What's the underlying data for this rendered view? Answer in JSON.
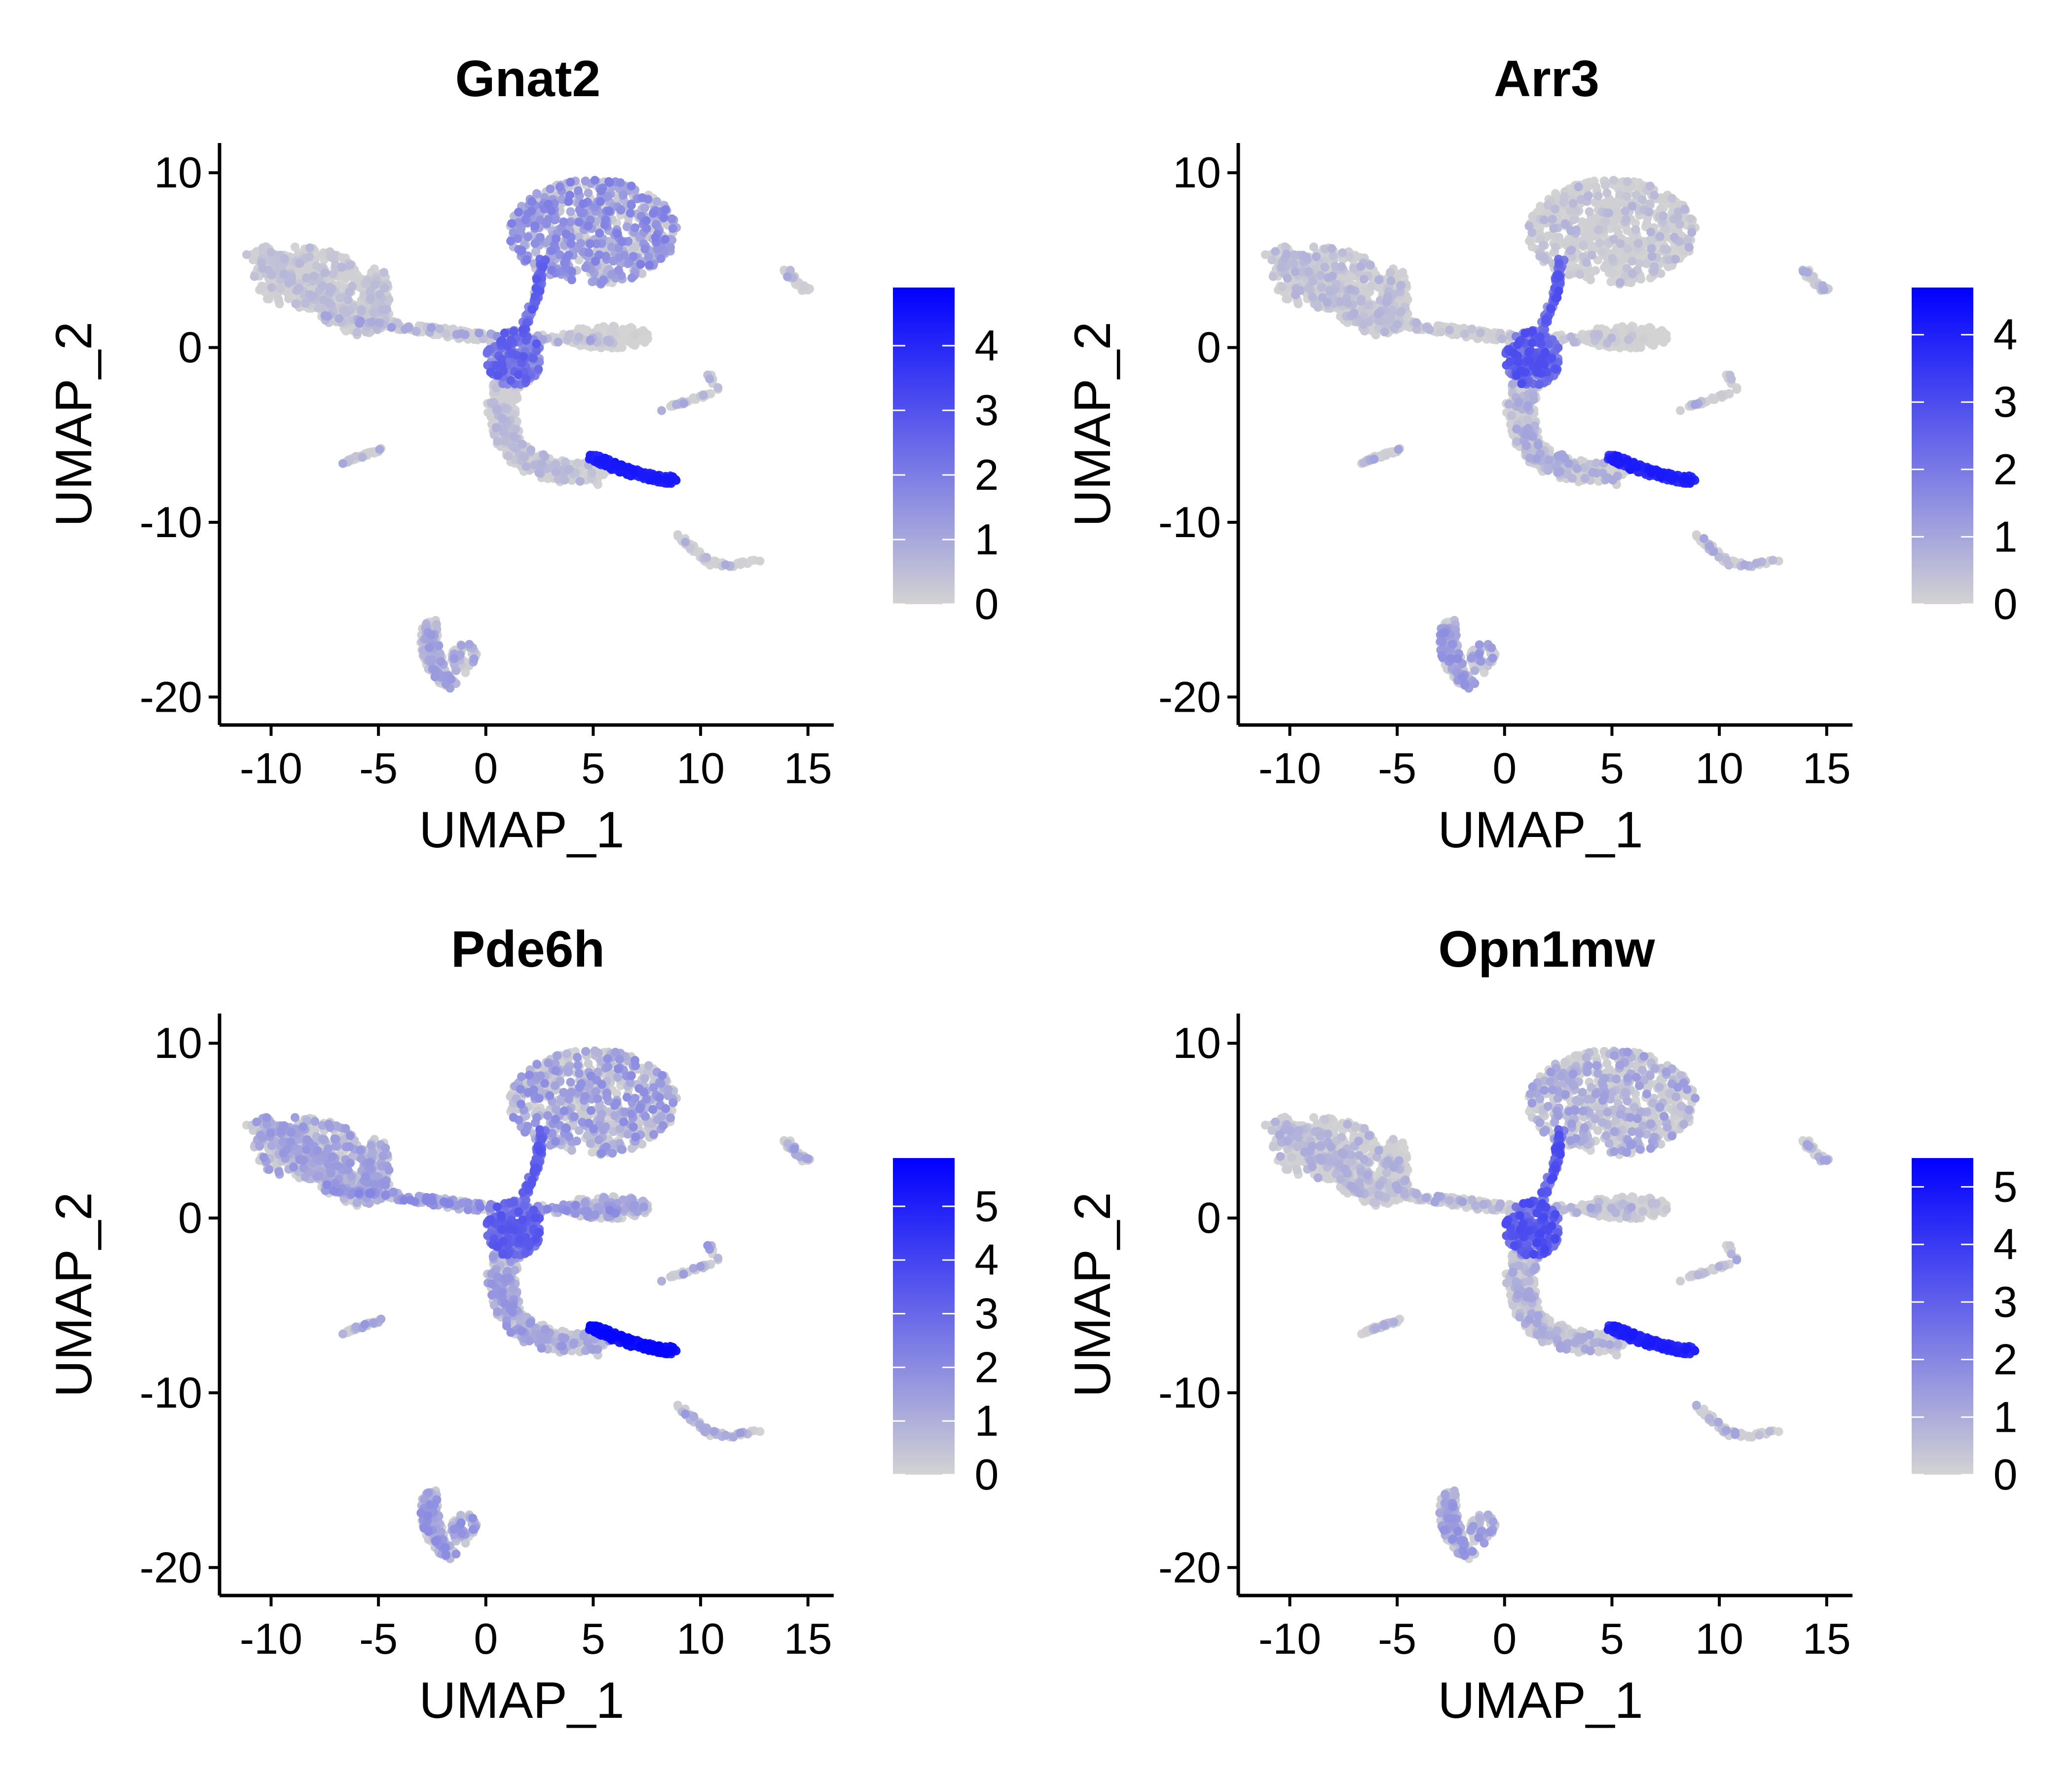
{
  "chart_data": [
    {
      "type": "scatter",
      "title": "Gnat2",
      "xlabel": "UMAP_1",
      "ylabel": "UMAP_2",
      "x_ticks": [
        -10,
        -5,
        0,
        5,
        10,
        15
      ],
      "y_ticks": [
        -20,
        -10,
        0,
        10
      ],
      "xlim": [
        -12.4,
        16.2
      ],
      "ylim": [
        -21.6,
        11.7
      ],
      "colorbar": {
        "ticks": [
          0,
          1,
          2,
          3,
          4
        ],
        "min": 0,
        "max": 4.9,
        "low_color": "#d3d3d3",
        "high_color": "#0000ff"
      },
      "expression_summary": [
        {
          "cluster": "upper-lobe",
          "level": 1.3,
          "spread": 0.35
        },
        {
          "cluster": "left-lobe",
          "level": 0.35,
          "spread": 0.15
        },
        {
          "cluster": "stem",
          "level": 0.6,
          "spread": 0.35
        },
        {
          "cluster": "junction",
          "level": 2.0,
          "spread": 0.45
        },
        {
          "cluster": "descending-arm",
          "level": 0.4,
          "spread": 0.2
        },
        {
          "cluster": "right-branch",
          "level": 0.05,
          "spread": 0.05
        },
        {
          "cluster": "hot-cluster",
          "level": 4.0,
          "spread": 0.2
        },
        {
          "cluster": "bottom-cluster",
          "level": 0.7,
          "spread": 0.35
        },
        {
          "cluster": "small-islands",
          "level": 0.5,
          "spread": 0.3
        }
      ]
    },
    {
      "type": "scatter",
      "title": "Arr3",
      "xlabel": "UMAP_1",
      "ylabel": "UMAP_2",
      "x_ticks": [
        -10,
        -5,
        0,
        5,
        10,
        15
      ],
      "y_ticks": [
        -20,
        -10,
        0,
        10
      ],
      "xlim": [
        -12.4,
        16.2
      ],
      "ylim": [
        -21.6,
        11.7
      ],
      "colorbar": {
        "ticks": [
          0,
          1,
          2,
          3,
          4
        ],
        "min": 0,
        "max": 4.7,
        "low_color": "#d3d3d3",
        "high_color": "#0000ff"
      },
      "expression_summary": [
        {
          "cluster": "upper-lobe",
          "level": 0.35,
          "spread": 0.2
        },
        {
          "cluster": "left-lobe",
          "level": 0.4,
          "spread": 0.2
        },
        {
          "cluster": "stem",
          "level": 0.3,
          "spread": 0.2
        },
        {
          "cluster": "junction",
          "level": 2.2,
          "spread": 0.45
        },
        {
          "cluster": "descending-arm",
          "level": 0.5,
          "spread": 0.3
        },
        {
          "cluster": "right-branch",
          "level": 0.05,
          "spread": 0.05
        },
        {
          "cluster": "hot-cluster",
          "level": 3.7,
          "spread": 0.25
        },
        {
          "cluster": "bottom-cluster",
          "level": 0.8,
          "spread": 0.4
        },
        {
          "cluster": "small-islands",
          "level": 0.5,
          "spread": 0.3
        }
      ]
    },
    {
      "type": "scatter",
      "title": "Pde6h",
      "xlabel": "UMAP_1",
      "ylabel": "UMAP_2",
      "x_ticks": [
        -10,
        -5,
        0,
        5,
        10,
        15
      ],
      "y_ticks": [
        -20,
        -10,
        0,
        10
      ],
      "xlim": [
        -12.4,
        16.2
      ],
      "ylim": [
        -21.6,
        11.7
      ],
      "colorbar": {
        "ticks": [
          0,
          1,
          2,
          3,
          4,
          5
        ],
        "min": 0,
        "max": 5.9,
        "low_color": "#d3d3d3",
        "high_color": "#0000ff"
      },
      "expression_summary": [
        {
          "cluster": "upper-lobe",
          "level": 1.2,
          "spread": 0.35
        },
        {
          "cluster": "left-lobe",
          "level": 1.0,
          "spread": 0.3
        },
        {
          "cluster": "stem",
          "level": 1.4,
          "spread": 0.35
        },
        {
          "cluster": "junction",
          "level": 2.8,
          "spread": 0.35
        },
        {
          "cluster": "descending-arm",
          "level": 1.0,
          "spread": 0.35
        },
        {
          "cluster": "right-branch",
          "level": 1.0,
          "spread": 0.3
        },
        {
          "cluster": "hot-cluster",
          "level": 5.3,
          "spread": 0.2
        },
        {
          "cluster": "bottom-cluster",
          "level": 1.2,
          "spread": 0.35
        },
        {
          "cluster": "small-islands",
          "level": 0.9,
          "spread": 0.35
        }
      ]
    },
    {
      "type": "scatter",
      "title": "Opn1mw",
      "xlabel": "UMAP_1",
      "ylabel": "UMAP_2",
      "x_ticks": [
        -10,
        -5,
        0,
        5,
        10,
        15
      ],
      "y_ticks": [
        -20,
        -10,
        0,
        10
      ],
      "xlim": [
        -12.4,
        16.2
      ],
      "ylim": [
        -21.6,
        11.7
      ],
      "colorbar": {
        "ticks": [
          0,
          1,
          2,
          3,
          4,
          5
        ],
        "min": 0,
        "max": 5.5,
        "low_color": "#d3d3d3",
        "high_color": "#0000ff"
      },
      "expression_summary": [
        {
          "cluster": "upper-lobe",
          "level": 0.8,
          "spread": 0.3
        },
        {
          "cluster": "left-lobe",
          "level": 0.5,
          "spread": 0.25
        },
        {
          "cluster": "stem",
          "level": 0.6,
          "spread": 0.3
        },
        {
          "cluster": "junction",
          "level": 2.7,
          "spread": 0.45
        },
        {
          "cluster": "descending-arm",
          "level": 0.6,
          "spread": 0.3
        },
        {
          "cluster": "right-branch",
          "level": 0.3,
          "spread": 0.2
        },
        {
          "cluster": "hot-cluster",
          "level": 4.3,
          "spread": 0.25
        },
        {
          "cluster": "bottom-cluster",
          "level": 1.0,
          "spread": 0.35
        },
        {
          "cluster": "small-islands",
          "level": 0.6,
          "spread": 0.3
        }
      ]
    }
  ],
  "clusters": [
    {
      "name": "upper-lobe",
      "kind": "blob",
      "cx": 5.0,
      "cy": 6.6,
      "rx": 3.9,
      "ry": 3.0,
      "n": 650
    },
    {
      "name": "left-lobe",
      "kind": "segments",
      "width": 1.5,
      "n": 520,
      "pts": [
        [
          -10.5,
          5.2
        ],
        [
          -9.2,
          4.5
        ],
        [
          -7.6,
          3.0
        ],
        [
          -6.0,
          1.4
        ],
        [
          -5.1,
          1.6
        ],
        [
          -5.3,
          3.9
        ]
      ]
    },
    {
      "name": "left-lobe-fill",
      "kind": "blob",
      "cx": -8.4,
      "cy": 4.0,
      "rx": 2.4,
      "ry": 1.8,
      "n": 260
    },
    {
      "name": "stem",
      "kind": "segments",
      "width": 0.55,
      "n": 260,
      "pts": [
        [
          -7.5,
          1.7
        ],
        [
          -2.0,
          0.9
        ],
        [
          0.5,
          0.5
        ],
        [
          2.5,
          0.5
        ],
        [
          6.0,
          0.5
        ]
      ]
    },
    {
      "name": "right-branch",
      "kind": "blob",
      "cx": 5.7,
      "cy": 0.6,
      "rx": 2.0,
      "ry": 0.65,
      "n": 160
    },
    {
      "name": "junction",
      "kind": "blob",
      "cx": 1.3,
      "cy": -0.6,
      "rx": 1.3,
      "ry": 1.6,
      "n": 190
    },
    {
      "name": "upper-connector",
      "kind": "segments",
      "width": 0.35,
      "n": 70,
      "pts": [
        [
          1.7,
          1.0
        ],
        [
          2.4,
          3.0
        ],
        [
          2.6,
          5.0
        ]
      ]
    },
    {
      "name": "descending-arm",
      "kind": "segments",
      "width": 1.35,
      "n": 520,
      "pts": [
        [
          1.2,
          -1.0
        ],
        [
          0.7,
          -3.5
        ],
        [
          1.0,
          -5.3
        ],
        [
          2.0,
          -6.6
        ],
        [
          3.7,
          -7.1
        ],
        [
          5.2,
          -7.2
        ]
      ]
    },
    {
      "name": "hot-cluster",
      "kind": "segments",
      "width": 0.5,
      "n": 260,
      "pts": [
        [
          5.0,
          -6.3
        ],
        [
          6.2,
          -6.9
        ],
        [
          7.5,
          -7.4
        ],
        [
          8.7,
          -7.6
        ]
      ]
    },
    {
      "name": "bottom-cluster",
      "kind": "segments",
      "width": 0.9,
      "n": 220,
      "pts": [
        [
          -2.6,
          -15.8
        ],
        [
          -2.6,
          -17.3
        ],
        [
          -2.2,
          -18.6
        ],
        [
          -1.6,
          -19.2
        ]
      ]
    },
    {
      "name": "bottom-lobe",
      "kind": "blob",
      "cx": -1.0,
      "cy": -17.8,
      "rx": 0.6,
      "ry": 0.9,
      "n": 50
    },
    {
      "name": "small-islands",
      "kind": "segments",
      "width": 0.2,
      "n": 40,
      "pts": [
        [
          -6.7,
          -6.6
        ],
        [
          -4.8,
          -5.8
        ]
      ]
    },
    {
      "name": "small-islands",
      "kind": "segments",
      "width": 0.2,
      "n": 40,
      "pts": [
        [
          8.0,
          -3.6
        ],
        [
          10.8,
          -2.5
        ],
        [
          10.4,
          -1.6
        ]
      ]
    },
    {
      "name": "small-islands",
      "kind": "segments",
      "width": 0.3,
      "n": 60,
      "pts": [
        [
          9.0,
          -10.8
        ],
        [
          10.4,
          -12.3
        ],
        [
          11.7,
          -12.5
        ],
        [
          12.8,
          -12.1
        ]
      ]
    },
    {
      "name": "small-islands",
      "kind": "segments",
      "width": 0.35,
      "n": 35,
      "pts": [
        [
          13.9,
          4.5
        ],
        [
          14.6,
          3.6
        ],
        [
          15.0,
          3.2
        ]
      ]
    }
  ]
}
